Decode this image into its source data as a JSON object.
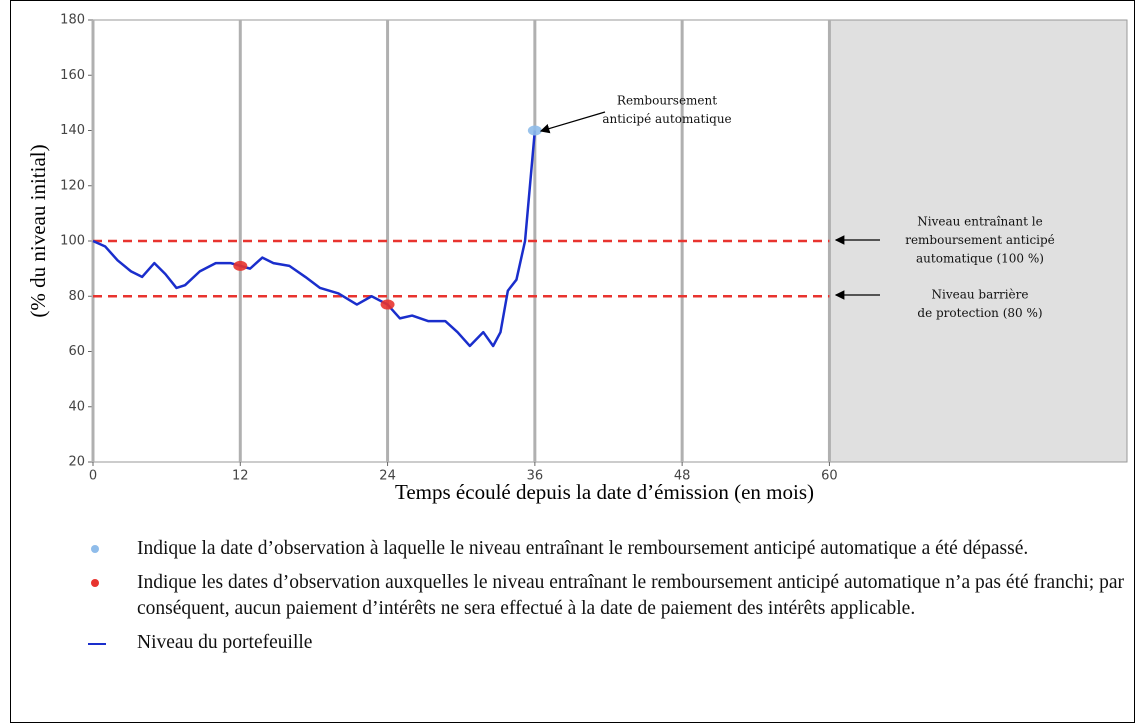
{
  "chart_data": {
    "type": "line",
    "xlabel": "Temps écoulé depuis la date d’émission (en mois)",
    "ylabel": "(% du niveau initial)",
    "xlim": [
      0,
      84
    ],
    "xticks": [
      0,
      12,
      24,
      36,
      48,
      60
    ],
    "ylim": [
      20,
      180
    ],
    "yticks": [
      20,
      40,
      60,
      80,
      100,
      120,
      140,
      160,
      180
    ],
    "vgrid": true,
    "grid_color": "#b0b0b0",
    "shaded_from": 60,
    "shade_color": "#e0e0e0",
    "hlines": [
      {
        "value": 100,
        "color": "#e8342f"
      },
      {
        "value": 80,
        "color": "#e8342f"
      }
    ],
    "series": [
      {
        "name": "Niveau du portefeuille",
        "color": "#1a2ecc",
        "x": [
          0,
          1,
          2,
          3.1,
          4,
          5,
          5.9,
          6.8,
          7.5,
          8.7,
          10,
          11.2,
          12,
          12.8,
          13.8,
          14.7,
          16,
          17.3,
          18.5,
          20,
          21.5,
          22.7,
          24,
          25,
          26,
          27.3,
          28.7,
          29.7,
          30.7,
          31.8,
          32.6,
          33.2,
          33.8,
          34.5,
          35.2,
          36
        ],
        "values": [
          100,
          98,
          93,
          89,
          87,
          92,
          88,
          83,
          84,
          89,
          92,
          92,
          91,
          90,
          94,
          92,
          91,
          87,
          83,
          81,
          77,
          80,
          77,
          72,
          73,
          71,
          71,
          67,
          62,
          67,
          62,
          67,
          82,
          86,
          100,
          140
        ]
      }
    ],
    "points": [
      {
        "x": 36,
        "value": 140,
        "color": "#8fbcea"
      },
      {
        "x": 12,
        "value": 91,
        "color": "#e8342f"
      },
      {
        "x": 24,
        "value": 77,
        "color": "#e8342f"
      }
    ],
    "annotations": [
      {
        "lines": [
          "Remboursement",
          "anticipé automatique"
        ]
      },
      {
        "lines": [
          "Niveau entraînant le",
          "remboursement anticipé",
          "automatique (100 %)"
        ]
      },
      {
        "lines": [
          "Niveau barrière",
          "de protection (80 %)"
        ]
      }
    ],
    "notes": [
      {
        "color": "#8fbcea",
        "text": "Indique la date d’observation à laquelle le niveau entraînant le remboursement anticipé automatique a été dépassé."
      },
      {
        "color": "#e8342f",
        "text": "Indique les dates d’observation auxquelles le niveau entraînant le remboursement anticipé automatique n’a pas été franchi; par conséquent, aucun paiement d’intérêts ne sera effectué à la date de paiement des intérêts applicable."
      }
    ]
  }
}
